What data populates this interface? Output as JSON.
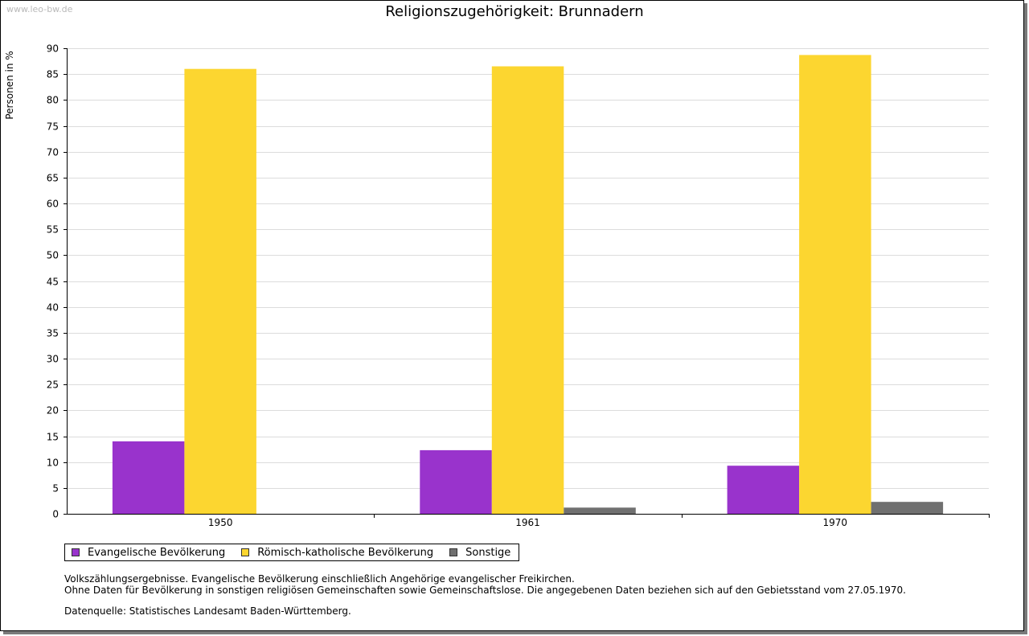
{
  "watermark": "www.leo-bw.de",
  "chart_data": {
    "type": "bar",
    "title": "Religionszugehörigkeit: Brunnadern",
    "xlabel": "",
    "ylabel": "Personen in %",
    "ylim": [
      0,
      90
    ],
    "ytick_step": 5,
    "yticks": [
      "0",
      "5",
      "10",
      "15",
      "20",
      "25",
      "30",
      "35",
      "40",
      "45",
      "50",
      "55",
      "60",
      "65",
      "70",
      "75",
      "80",
      "85",
      "90"
    ],
    "grid": true,
    "categories": [
      "1950",
      "1961",
      "1970"
    ],
    "series": [
      {
        "name": "Evangelische Bevölkerung",
        "color": "#9933cc",
        "values": [
          14.0,
          12.3,
          9.3
        ]
      },
      {
        "name": "Römisch-katholische Bevölkerung",
        "color": "#fcd630",
        "values": [
          86.0,
          86.5,
          88.7
        ]
      },
      {
        "name": "Sonstige",
        "color": "#707070",
        "values": [
          0,
          1.2,
          2.3
        ]
      }
    ],
    "legend_position": "bottom-left"
  },
  "notes": {
    "line1": "Volkszählungsergebnisse. Evangelische Bevölkerung einschließlich Angehörige evangelischer Freikirchen.",
    "line2": "Ohne Daten für Bevölkerung in sonstigen religiösen Gemeinschaften sowie Gemeinschaftslose. Die angegebenen Daten beziehen sich auf den Gebietsstand vom 27.05.1970.",
    "source": "Datenquelle: Statistisches Landesamt Baden-Württemberg."
  }
}
